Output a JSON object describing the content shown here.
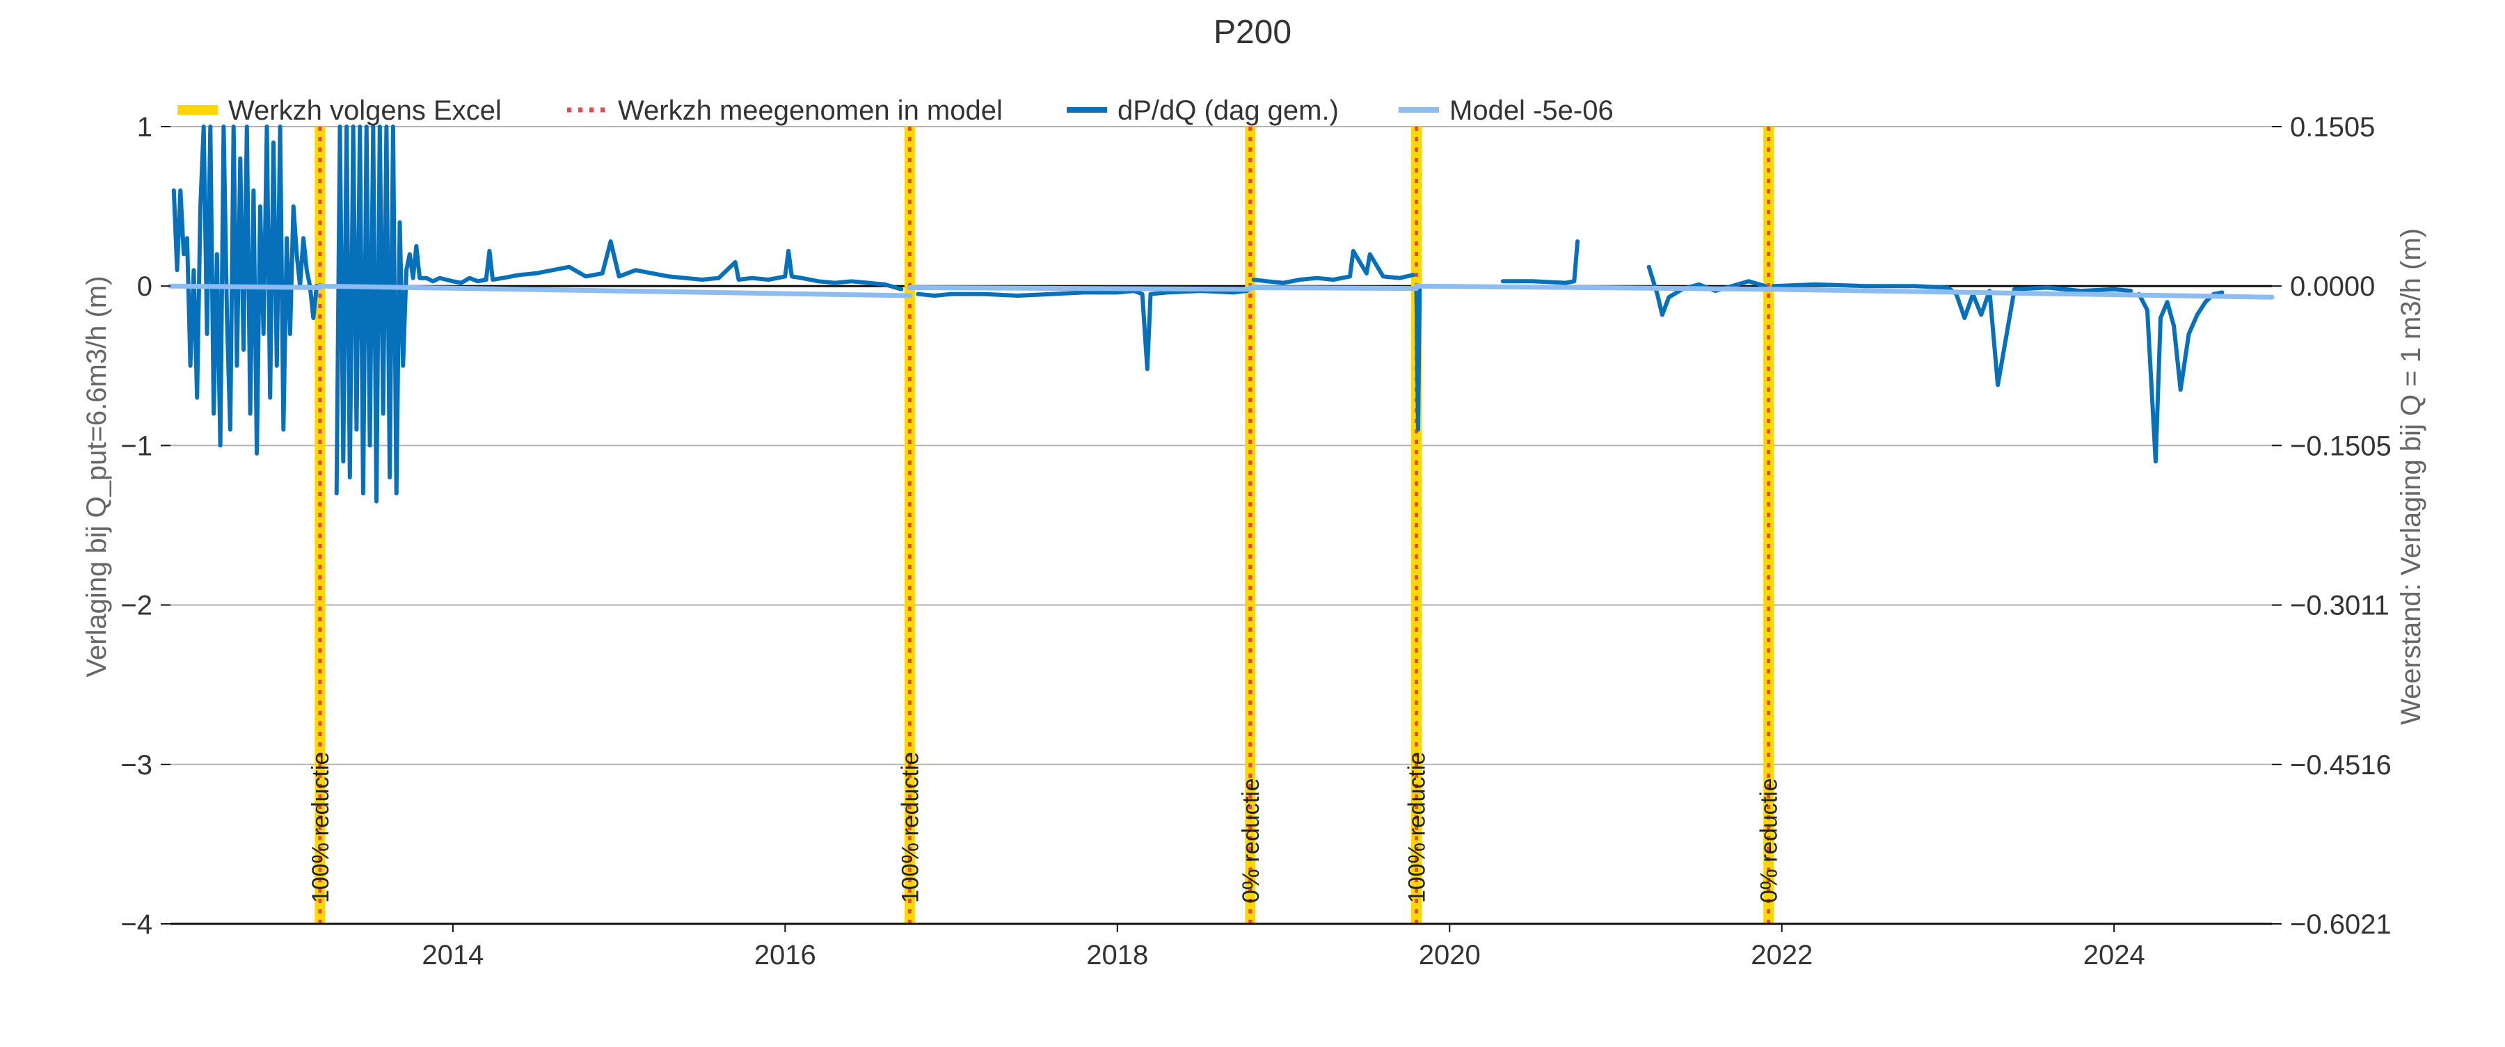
{
  "chart_data": {
    "type": "line",
    "title": "P200",
    "ylabel": "Verlaging bij Q_put=6.6m3/h (m)",
    "y2label": "Weerstand: Verlaging bij Q = 1 m3/h (m)",
    "xlim": [
      2012.3,
      2024.95
    ],
    "ylim": [
      -4,
      1
    ],
    "y2lim": [
      -0.6021,
      0.1505
    ],
    "xticks": [
      2014,
      2016,
      2018,
      2020,
      2022,
      2024
    ],
    "xtick_labels": [
      "2014",
      "2016",
      "2018",
      "2020",
      "2022",
      "2024"
    ],
    "yticks": [
      1,
      0,
      -1,
      -2,
      -3,
      -4
    ],
    "ytick_labels": [
      "1",
      "0",
      "−1",
      "−2",
      "−3",
      "−4"
    ],
    "y2ticks": [
      0.1505,
      0.0,
      -0.1505,
      -0.3011,
      -0.4516,
      -0.6021
    ],
    "y2tick_labels": [
      "0.1505",
      "0.0000",
      "−0.1505",
      "−0.3011",
      "−0.4516",
      "−0.6021"
    ],
    "grid": true,
    "legend_position": "top",
    "legend": [
      {
        "key": "excel",
        "label": "Werkzh volgens Excel"
      },
      {
        "key": "model_events",
        "label": "Werkzh meegenomen in model"
      },
      {
        "key": "dpdq",
        "label": "dP/dQ (dag gem.)"
      },
      {
        "key": "model",
        "label": "Model -5e-06"
      }
    ],
    "colors": {
      "excel": "#FFD700",
      "model_events": "#E8474C",
      "dpdq": "#0770BB",
      "model": "#8DBDF0"
    },
    "events": [
      {
        "x": 2013.2,
        "label": "100% reductie"
      },
      {
        "x": 2016.75,
        "label": "100% reductie"
      },
      {
        "x": 2018.8,
        "label": "0% reductie"
      },
      {
        "x": 2019.8,
        "label": "100% reductie"
      },
      {
        "x": 2021.92,
        "label": "0% reductie"
      }
    ],
    "series": [
      {
        "key": "model",
        "name": "Model -5e-06",
        "segments": [
          {
            "x": [
              2012.3,
              2013.2
            ],
            "y": [
              0.0,
              -0.01
            ]
          },
          {
            "x": [
              2013.2,
              2016.75
            ],
            "y": [
              0.0,
              -0.06
            ]
          },
          {
            "x": [
              2016.75,
              2018.8
            ],
            "y": [
              -0.01,
              -0.02
            ]
          },
          {
            "x": [
              2018.8,
              2019.8
            ],
            "y": [
              -0.01,
              -0.015
            ]
          },
          {
            "x": [
              2019.8,
              2021.92
            ],
            "y": [
              0.0,
              -0.02
            ]
          },
          {
            "x": [
              2021.92,
              2024.95
            ],
            "y": [
              -0.02,
              -0.07
            ]
          }
        ]
      },
      {
        "key": "dpdq",
        "name": "dP/dQ (dag gem.)",
        "segments": [
          {
            "x": [
              2012.32,
              2012.34,
              2012.36,
              2012.38,
              2012.4,
              2012.42,
              2012.44,
              2012.46,
              2012.48,
              2012.5,
              2012.52,
              2012.54,
              2012.56,
              2012.58,
              2012.6,
              2012.62,
              2012.64,
              2012.66,
              2012.68,
              2012.7,
              2012.72,
              2012.74,
              2012.76,
              2012.78,
              2012.8,
              2012.82,
              2012.84,
              2012.86,
              2012.88,
              2012.9,
              2012.92,
              2012.94,
              2012.96,
              2012.98,
              2013.0,
              2013.02,
              2013.04,
              2013.06,
              2013.08,
              2013.1,
              2013.12,
              2013.14,
              2013.16,
              2013.18
            ],
            "y": [
              0.6,
              0.1,
              0.6,
              0.2,
              0.3,
              -0.5,
              0.1,
              -0.7,
              0.5,
              1.0,
              -0.3,
              1.0,
              -0.8,
              0.2,
              -1.0,
              1.0,
              -0.2,
              -0.9,
              1.0,
              -0.5,
              0.8,
              -0.4,
              1.0,
              -0.8,
              0.6,
              -1.05,
              0.5,
              -0.3,
              1.0,
              -0.7,
              0.9,
              -0.5,
              1.0,
              -0.9,
              0.3,
              -0.3,
              0.5,
              0.2,
              0.0,
              0.3,
              0.1,
              0.0,
              -0.2,
              0.0
            ]
          },
          {
            "x": [
              2013.3,
              2013.32,
              2013.34,
              2013.36,
              2013.38,
              2013.4,
              2013.42,
              2013.44,
              2013.46,
              2013.48,
              2013.5,
              2013.52,
              2013.54,
              2013.56,
              2013.58,
              2013.6,
              2013.62,
              2013.64,
              2013.66,
              2013.68,
              2013.7,
              2013.72,
              2013.74,
              2013.76,
              2013.78,
              2013.8,
              2013.84,
              2013.88,
              2013.92,
              2013.96,
              2014.0,
              2014.05,
              2014.1,
              2014.15,
              2014.2,
              2014.22,
              2014.24,
              2014.3,
              2014.4,
              2014.5,
              2014.6,
              2014.7,
              2014.8,
              2014.9,
              2014.95,
              2015.0,
              2015.1,
              2015.2,
              2015.3,
              2015.4,
              2015.5,
              2015.6,
              2015.7,
              2015.72,
              2015.8,
              2015.9,
              2016.0,
              2016.02,
              2016.04,
              2016.1,
              2016.2,
              2016.3,
              2016.4,
              2016.5,
              2016.6,
              2016.7
            ],
            "y": [
              -1.3,
              1.0,
              -1.1,
              1.0,
              -1.2,
              1.0,
              -0.9,
              1.0,
              -1.3,
              1.0,
              -1.0,
              1.0,
              -1.35,
              1.0,
              -0.8,
              1.0,
              -1.2,
              1.0,
              -1.3,
              0.4,
              -0.5,
              0.1,
              0.2,
              0.05,
              0.25,
              0.05,
              0.05,
              0.03,
              0.05,
              0.04,
              0.03,
              0.02,
              0.05,
              0.03,
              0.04,
              0.22,
              0.04,
              0.05,
              0.07,
              0.08,
              0.1,
              0.12,
              0.06,
              0.08,
              0.28,
              0.06,
              0.1,
              0.08,
              0.06,
              0.05,
              0.04,
              0.05,
              0.15,
              0.04,
              0.05,
              0.04,
              0.06,
              0.22,
              0.06,
              0.05,
              0.03,
              0.02,
              0.03,
              0.02,
              0.01,
              -0.02
            ]
          },
          {
            "x": [
              2016.8,
              2016.9,
              2017.0,
              2017.2,
              2017.4,
              2017.6,
              2017.8,
              2018.0,
              2018.1,
              2018.15,
              2018.18,
              2018.2,
              2018.3,
              2018.5,
              2018.7,
              2018.78
            ],
            "y": [
              -0.05,
              -0.06,
              -0.05,
              -0.05,
              -0.06,
              -0.05,
              -0.04,
              -0.04,
              -0.03,
              -0.05,
              -0.52,
              -0.05,
              -0.04,
              -0.03,
              -0.04,
              -0.03
            ]
          },
          {
            "x": [
              2018.82,
              2018.9,
              2019.0,
              2019.1,
              2019.2,
              2019.3,
              2019.4,
              2019.42,
              2019.5,
              2019.52,
              2019.6,
              2019.7,
              2019.78
            ],
            "y": [
              0.04,
              0.03,
              0.02,
              0.04,
              0.05,
              0.04,
              0.06,
              0.22,
              0.08,
              0.2,
              0.06,
              0.05,
              0.07
            ]
          },
          {
            "x": [
              2019.8,
              2019.81,
              2019.82
            ],
            "y": [
              0.0,
              -0.9,
              0.0
            ]
          },
          {
            "x": [
              2020.32,
              2020.5,
              2020.7,
              2020.75,
              2020.77
            ],
            "y": [
              0.03,
              0.03,
              0.02,
              0.03,
              0.28
            ]
          },
          {
            "x": [
              2021.2,
              2021.25,
              2021.28,
              2021.32,
              2021.4,
              2021.5,
              2021.6,
              2021.7,
              2021.8,
              2021.9
            ],
            "y": [
              0.12,
              -0.05,
              -0.18,
              -0.07,
              -0.02,
              0.01,
              -0.03,
              0.0,
              0.03,
              0.0
            ]
          },
          {
            "x": [
              2021.95,
              2022.2,
              2022.5,
              2022.8,
              2023.0,
              2023.05,
              2023.1,
              2023.15,
              2023.2,
              2023.25,
              2023.3,
              2023.4,
              2023.6,
              2023.8,
              2024.0,
              2024.1
            ],
            "y": [
              0.0,
              0.01,
              0.0,
              0.0,
              -0.01,
              -0.05,
              -0.2,
              -0.05,
              -0.18,
              -0.03,
              -0.62,
              -0.02,
              -0.01,
              -0.03,
              -0.02,
              -0.03
            ]
          },
          {
            "x": [
              2024.15,
              2024.2,
              2024.25,
              2024.28,
              2024.32,
              2024.36,
              2024.4,
              2024.45,
              2024.5,
              2024.55,
              2024.6,
              2024.65
            ],
            "y": [
              -0.05,
              -0.15,
              -1.1,
              -0.2,
              -0.1,
              -0.25,
              -0.65,
              -0.3,
              -0.18,
              -0.1,
              -0.05,
              -0.04
            ]
          }
        ]
      }
    ]
  }
}
